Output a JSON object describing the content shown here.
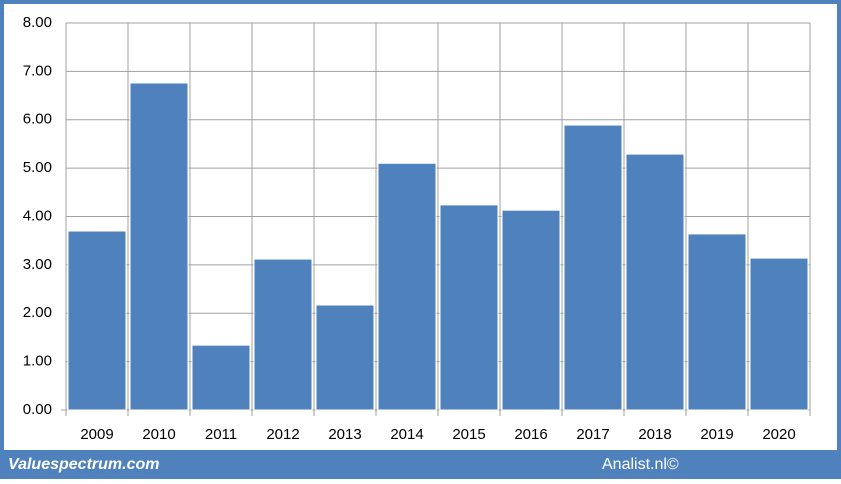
{
  "chart_data": {
    "type": "bar",
    "categories": [
      "2009",
      "2010",
      "2011",
      "2012",
      "2013",
      "2014",
      "2015",
      "2016",
      "2017",
      "2018",
      "2019",
      "2020"
    ],
    "values": [
      3.7,
      6.76,
      1.34,
      3.12,
      2.17,
      5.1,
      4.24,
      4.13,
      5.89,
      5.29,
      3.64,
      3.14
    ],
    "color": "#4f81bd",
    "ylim": [
      0,
      8
    ],
    "yticks": [
      {
        "value": 0,
        "label": "0.00"
      },
      {
        "value": 1,
        "label": "1.00"
      },
      {
        "value": 2,
        "label": "2.00"
      },
      {
        "value": 3,
        "label": "3.00"
      },
      {
        "value": 4,
        "label": "4.00"
      },
      {
        "value": 5,
        "label": "5.00"
      },
      {
        "value": 6,
        "label": "6.00"
      },
      {
        "value": 7,
        "label": "7.00"
      },
      {
        "value": 8,
        "label": "8.00"
      }
    ],
    "grid": true
  },
  "footer": {
    "left": "Valuespectrum.com",
    "right": "Analist.nl©"
  }
}
